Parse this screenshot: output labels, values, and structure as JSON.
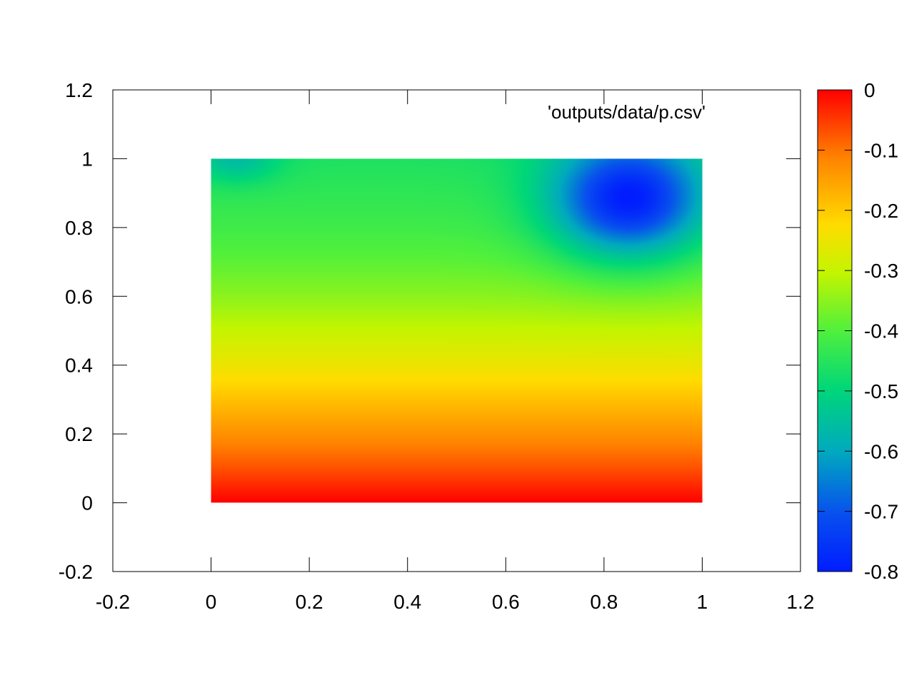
{
  "chart_data": {
    "type": "heatmap",
    "legend_entry": "'outputs/data/p.csv'",
    "legend_position": "top-right",
    "grid": false,
    "xlim": [
      -0.2,
      1.2
    ],
    "ylim": [
      -0.2,
      1.2
    ],
    "x_ticks": [
      "-0.2",
      "0",
      "0.2",
      "0.4",
      "0.6",
      "0.8",
      "1",
      "1.2"
    ],
    "y_ticks": [
      "-0.2",
      "0",
      "0.2",
      "0.4",
      "0.6",
      "0.8",
      "1",
      "1.2"
    ],
    "data_extent": {
      "x": [
        0,
        1
      ],
      "y": [
        0,
        1
      ]
    },
    "colorbar": {
      "range": [
        -0.8,
        0
      ],
      "ticks": [
        "0",
        "-0.1",
        "-0.2",
        "-0.3",
        "-0.4",
        "-0.5",
        "-0.6",
        "-0.7",
        "-0.8"
      ],
      "palette": "rainbow (blue = -0.8, cyan, green, yellow, orange, red = 0)"
    },
    "field": {
      "description_of_values": "value falls from 0 at y=0 to about -0.45 at y=1, with a minimum near (0.85, 0.88)",
      "base_profile": {
        "y": [
          0,
          0.1,
          0.2,
          0.3,
          0.4,
          0.5,
          0.6,
          0.7,
          0.8,
          0.9,
          1.0
        ],
        "value": [
          0,
          -0.07,
          -0.13,
          -0.19,
          -0.25,
          -0.3,
          -0.35,
          -0.39,
          -0.42,
          -0.44,
          -0.46
        ]
      },
      "minimum": {
        "x": 0.85,
        "y": 0.88,
        "value": -0.8
      },
      "secondary_low": {
        "x": 0.05,
        "y": 1.0,
        "value": -0.56
      }
    }
  }
}
